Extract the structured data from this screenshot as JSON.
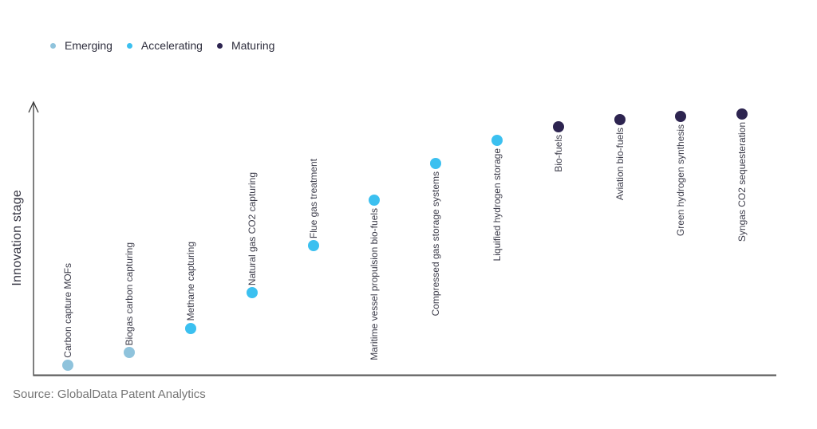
{
  "legend": {
    "items": [
      {
        "label": "Emerging",
        "color": "#8FC3DC"
      },
      {
        "label": "Accelerating",
        "color": "#3BC0F0"
      },
      {
        "label": "Maturing",
        "color": "#2D2450"
      }
    ]
  },
  "source_text": "Source: GlobalData Patent Analytics",
  "chart_data": {
    "type": "scatter",
    "title": "",
    "xlabel": "",
    "ylabel": "Innovation stage",
    "ylim": [
      0,
      100
    ],
    "grid": false,
    "axis_ticks": "none",
    "legend_position": "top-left",
    "stages": {
      "Emerging": "#8FC3DC",
      "Accelerating": "#3BC0F0",
      "Maturing": "#2D2450"
    },
    "points": [
      {
        "label": "Carbon capture MOFs",
        "stage": "Emerging",
        "value": 3.5,
        "label_side": "above"
      },
      {
        "label": "Biogas carbon capturing",
        "stage": "Emerging",
        "value": 8.2,
        "label_side": "above"
      },
      {
        "label": "Methane capturing",
        "stage": "Accelerating",
        "value": 17.0,
        "label_side": "above"
      },
      {
        "label": "Natural gas CO2 capturing",
        "stage": "Accelerating",
        "value": 30.1,
        "label_side": "above"
      },
      {
        "label": "Flue gas treatment",
        "stage": "Accelerating",
        "value": 47.4,
        "label_side": "above"
      },
      {
        "label": "Maritime vessel propulsion bio-fuels",
        "stage": "Accelerating",
        "value": 64.0,
        "label_side": "below"
      },
      {
        "label": "Compressed gas storage systems",
        "stage": "Accelerating",
        "value": 77.5,
        "label_side": "below"
      },
      {
        "label": "Liquified hydrogen storage",
        "stage": "Accelerating",
        "value": 86.0,
        "label_side": "below"
      },
      {
        "label": "Bio-fuels",
        "stage": "Maturing",
        "value": 90.9,
        "label_side": "below"
      },
      {
        "label": "Aviation bio-fuels",
        "stage": "Maturing",
        "value": 93.6,
        "label_side": "below"
      },
      {
        "label": "Green hydrogen synthesis",
        "stage": "Maturing",
        "value": 94.7,
        "label_side": "below"
      },
      {
        "label": "Syngas CO2 sequesteration",
        "stage": "Maturing",
        "value": 95.6,
        "label_side": "below"
      }
    ]
  }
}
